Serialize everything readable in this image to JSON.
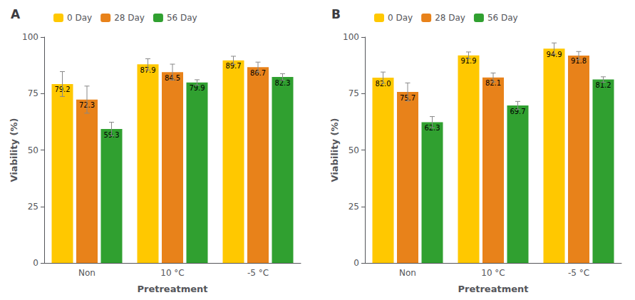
{
  "chart_data": [
    {
      "type": "bar",
      "title": "A",
      "xlabel": "Pretreatment",
      "ylabel": "Viability (%)",
      "categories": [
        "Non",
        "10 °C",
        "-5 °C"
      ],
      "series": [
        {
          "name": "0 Day",
          "color": "#FFC800",
          "values": [
            79.2,
            87.9,
            89.7
          ],
          "errors": [
            5.5,
            2.5,
            1.8
          ]
        },
        {
          "name": "28 Day",
          "color": "#E8821A",
          "values": [
            72.3,
            84.5,
            86.7
          ],
          "errors": [
            6.0,
            3.5,
            2.2
          ]
        },
        {
          "name": "56 Day",
          "color": "#30A030",
          "values": [
            59.3,
            79.9,
            82.3
          ],
          "errors": [
            3.0,
            1.2,
            1.5
          ]
        }
      ],
      "ylim": [
        0,
        100
      ],
      "yticks": [
        0,
        25,
        50,
        75,
        100
      ],
      "grid": false,
      "legend": "upper left",
      "data_labels": true
    },
    {
      "type": "bar",
      "title": "B",
      "xlabel": "Pretreatment",
      "ylabel": "Viability (%)",
      "categories": [
        "Non",
        "10 °C",
        "-5 °C"
      ],
      "series": [
        {
          "name": "0 Day",
          "color": "#FFC800",
          "values": [
            82.0,
            91.9,
            94.9
          ],
          "value_labels": [
            "82.0",
            "91.9",
            "94.9"
          ],
          "errors": [
            2.5,
            1.5,
            2.5
          ]
        },
        {
          "name": "28 Day",
          "color": "#E8821A",
          "values": [
            75.7,
            82.1,
            91.8
          ],
          "errors": [
            4.0,
            2.0,
            1.8
          ]
        },
        {
          "name": "56 Day",
          "color": "#30A030",
          "values": [
            62.3,
            69.7,
            81.2
          ],
          "errors": [
            2.5,
            1.8,
            1.2
          ]
        }
      ],
      "ylim": [
        0,
        100
      ],
      "yticks": [
        0,
        25,
        50,
        75,
        100
      ],
      "grid": false,
      "legend": "upper left",
      "data_labels": true
    }
  ]
}
